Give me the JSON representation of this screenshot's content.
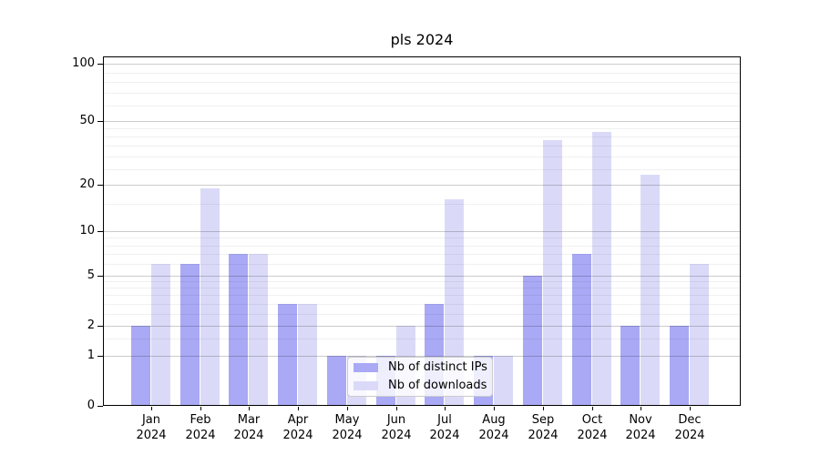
{
  "chart_data": {
    "type": "bar",
    "title": "pls 2024",
    "months": [
      "Jan",
      "Feb",
      "Mar",
      "Apr",
      "May",
      "Jun",
      "Jul",
      "Aug",
      "Sep",
      "Oct",
      "Nov",
      "Dec"
    ],
    "year_label": "2024",
    "series": [
      {
        "key": "distinct-ips",
        "name": "Nb of distinct IPs",
        "color": "#a9a9f5",
        "values": [
          2,
          6,
          7,
          3,
          1,
          1,
          3,
          1,
          5,
          7,
          2,
          2
        ]
      },
      {
        "key": "downloads",
        "name": "Nb of downloads",
        "color": "#dadaf8",
        "values": [
          6,
          19,
          7,
          3,
          1,
          2,
          16,
          1,
          38,
          43,
          23,
          6
        ]
      }
    ],
    "yscale": "log-like with zero baseline",
    "yticks": [
      0,
      1,
      2,
      5,
      10,
      20,
      50,
      100
    ],
    "yticks_minor": [
      1.5,
      2.5,
      3,
      3.5,
      4,
      4.5,
      6,
      7,
      8,
      9,
      15,
      25,
      30,
      35,
      40,
      45,
      60,
      70,
      80,
      90
    ],
    "ylim": [
      0,
      110
    ],
    "grid": true,
    "legend_position": "lower center"
  }
}
